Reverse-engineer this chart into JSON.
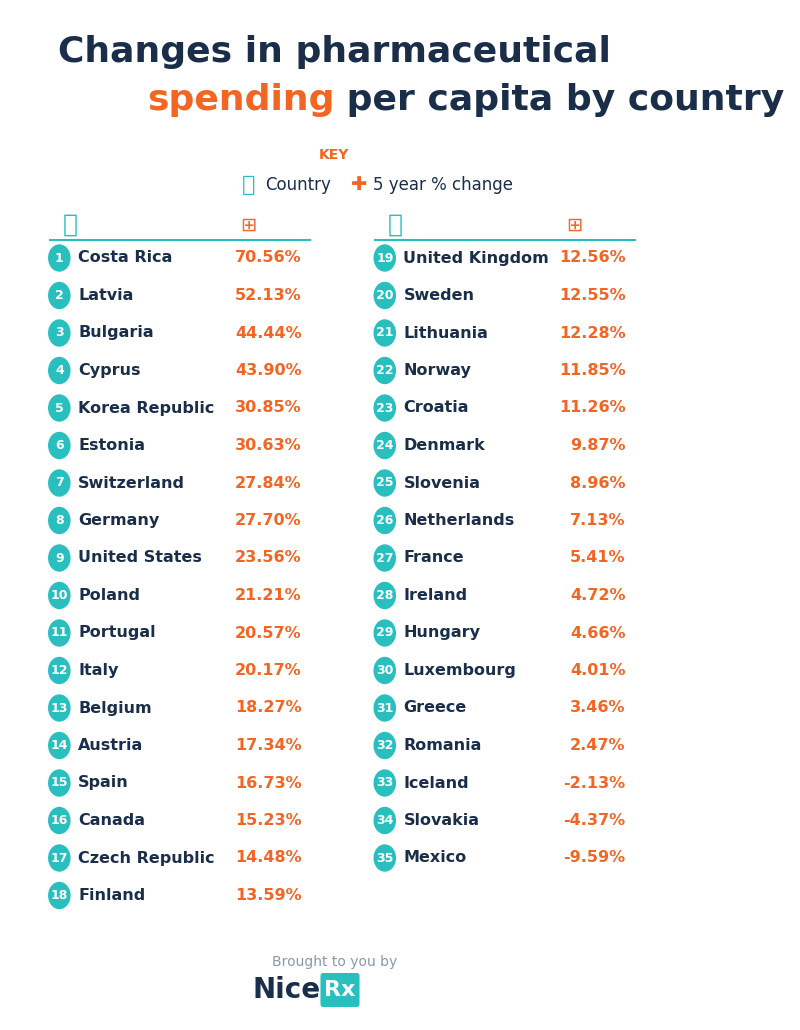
{
  "title_line1": "Changes in pharmaceutical",
  "title_line2_orange": "spending",
  "title_line2_rest": " per capita by country",
  "key_label": "KEY",
  "key_country": "Country",
  "key_change": "5 year % change",
  "footer_line1": "Brought to you by",
  "footer_line2_black": "Nice",
  "footer_line2_teal": "Rx",
  "bg_color": "#ffffff",
  "title_color": "#1a2e4a",
  "orange_color": "#f26522",
  "teal_color": "#2abfbf",
  "left_data": [
    {
      "rank": 1,
      "country": "Costa Rica",
      "value": "70.56%"
    },
    {
      "rank": 2,
      "country": "Latvia",
      "value": "52.13%"
    },
    {
      "rank": 3,
      "country": "Bulgaria",
      "value": "44.44%"
    },
    {
      "rank": 4,
      "country": "Cyprus",
      "value": "43.90%"
    },
    {
      "rank": 5,
      "country": "Korea Republic",
      "value": "30.85%"
    },
    {
      "rank": 6,
      "country": "Estonia",
      "value": "30.63%"
    },
    {
      "rank": 7,
      "country": "Switzerland",
      "value": "27.84%"
    },
    {
      "rank": 8,
      "country": "Germany",
      "value": "27.70%"
    },
    {
      "rank": 9,
      "country": "United States",
      "value": "23.56%"
    },
    {
      "rank": 10,
      "country": "Poland",
      "value": "21.21%"
    },
    {
      "rank": 11,
      "country": "Portugal",
      "value": "20.57%"
    },
    {
      "rank": 12,
      "country": "Italy",
      "value": "20.17%"
    },
    {
      "rank": 13,
      "country": "Belgium",
      "value": "18.27%"
    },
    {
      "rank": 14,
      "country": "Austria",
      "value": "17.34%"
    },
    {
      "rank": 15,
      "country": "Spain",
      "value": "16.73%"
    },
    {
      "rank": 16,
      "country": "Canada",
      "value": "15.23%"
    },
    {
      "rank": 17,
      "country": "Czech Republic",
      "value": "14.48%"
    },
    {
      "rank": 18,
      "country": "Finland",
      "value": "13.59%"
    }
  ],
  "right_data": [
    {
      "rank": 19,
      "country": "United Kingdom",
      "value": "12.56%"
    },
    {
      "rank": 20,
      "country": "Sweden",
      "value": "12.55%"
    },
    {
      "rank": 21,
      "country": "Lithuania",
      "value": "12.28%"
    },
    {
      "rank": 22,
      "country": "Norway",
      "value": "11.85%"
    },
    {
      "rank": 23,
      "country": "Croatia",
      "value": "11.26%"
    },
    {
      "rank": 24,
      "country": "Denmark",
      "value": "9.87%"
    },
    {
      "rank": 25,
      "country": "Slovenia",
      "value": "8.96%"
    },
    {
      "rank": 26,
      "country": "Netherlands",
      "value": "7.13%"
    },
    {
      "rank": 27,
      "country": "France",
      "value": "5.41%"
    },
    {
      "rank": 28,
      "country": "Ireland",
      "value": "4.72%"
    },
    {
      "rank": 29,
      "country": "Hungary",
      "value": "4.66%"
    },
    {
      "rank": 30,
      "country": "Luxembourg",
      "value": "4.01%"
    },
    {
      "rank": 31,
      "country": "Greece",
      "value": "3.46%"
    },
    {
      "rank": 32,
      "country": "Romania",
      "value": "2.47%"
    },
    {
      "rank": 33,
      "country": "Iceland",
      "value": "-2.13%"
    },
    {
      "rank": 34,
      "country": "Slovakia",
      "value": "-4.37%"
    },
    {
      "rank": 35,
      "country": "Mexico",
      "value": "-9.59%"
    }
  ]
}
